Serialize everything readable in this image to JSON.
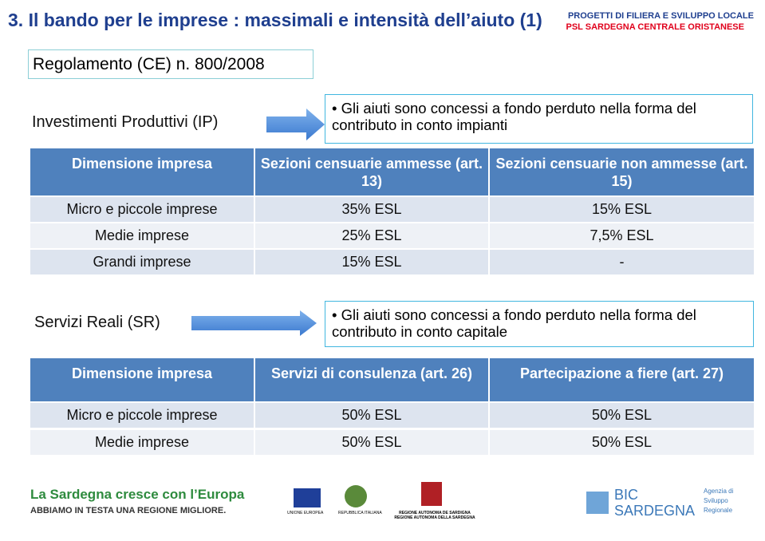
{
  "header": {
    "title": "3. Il bando per le imprese : massimali e intensità dell’aiuto (1)",
    "right_line1": "PROGETTI DI FILIERA E SVILUPPO LOCALE",
    "right_line2": "PSL SARDEGNA CENTRALE ORISTANESE"
  },
  "regulation": "Regolamento (CE) n. 800/2008",
  "section1": {
    "label": "Investimenti Produttivi (IP)",
    "note": "Gli aiuti sono concessi a fondo perduto nella forma del contributo in conto impianti",
    "table": {
      "header": [
        "Dimensione impresa",
        "Sezioni censuarie ammesse (art. 13)",
        "Sezioni censuarie non ammesse (art. 15)"
      ],
      "rows": [
        [
          "Micro e piccole imprese",
          "35% ESL",
          "15% ESL"
        ],
        [
          "Medie imprese",
          "25% ESL",
          "7,5% ESL"
        ],
        [
          "Grandi imprese",
          "15% ESL",
          "-"
        ]
      ]
    }
  },
  "section2": {
    "label": "Servizi Reali (SR)",
    "note": "Gli aiuti sono concessi a fondo perduto nella forma del contributo in conto capitale",
    "table": {
      "header": [
        "Dimensione impresa",
        "Servizi di consulenza (art. 26)",
        "Partecipazione a fiere (art. 27)"
      ],
      "rows": [
        [
          "Micro e piccole imprese",
          "50% ESL",
          "50% ESL"
        ],
        [
          "Medie imprese",
          "50% ESL",
          "50% ESL"
        ]
      ]
    }
  },
  "footer": {
    "slogan": "La Sardegna cresce con l’Europa",
    "tagline": "ABBIAMO IN TESTA UNA REGIONE MIGLIORE.",
    "eu": "UNIONE EUROPEA",
    "it": "REPUBBLICA ITALIANA",
    "ras": "REGIONE AUTONOMA DE SARDIGNA REGIONE AUTONOMA DELLA SARDEGNA",
    "bic": "BIC SARDEGNA",
    "agency": "Agenzia di Sviluppo Regionale"
  }
}
